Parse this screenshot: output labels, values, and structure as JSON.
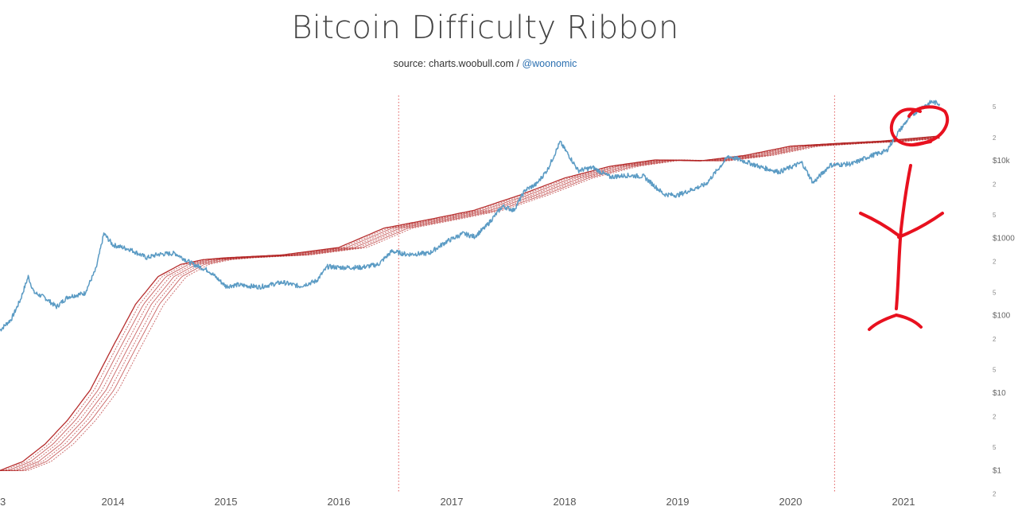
{
  "chart_data": {
    "type": "line",
    "title": "Bitcoin Difficulty Ribbon",
    "source_text": "source: charts.woobull.com / ",
    "source_handle": "@woonomic",
    "x_tick_labels": [
      {
        "year": 2013,
        "label": "3"
      },
      {
        "year": 2014,
        "label": "2014"
      },
      {
        "year": 2015,
        "label": "2015"
      },
      {
        "year": 2016,
        "label": "2016"
      },
      {
        "year": 2017,
        "label": "2017"
      },
      {
        "year": 2018,
        "label": "2018"
      },
      {
        "year": 2019,
        "label": "2019"
      },
      {
        "year": 2020,
        "label": "2020"
      },
      {
        "year": 2021,
        "label": "2021"
      }
    ],
    "y_scale": "log",
    "ylim": [
      0.45,
      70000
    ],
    "y_major_ticks": [
      {
        "value": 1,
        "label": "$1"
      },
      {
        "value": 10,
        "label": "$10"
      },
      {
        "value": 100,
        "label": "$100"
      },
      {
        "value": 1000,
        "label": "$1000"
      },
      {
        "value": 10000,
        "label": "$10k"
      }
    ],
    "y_minor_ticks": [
      {
        "value": 0.5,
        "label": "2"
      },
      {
        "value": 2,
        "label": "5"
      },
      {
        "value": 5,
        "label": "2"
      },
      {
        "value": 20,
        "label": "5"
      },
      {
        "value": 50,
        "label": "2"
      },
      {
        "value": 200,
        "label": "5"
      },
      {
        "value": 500,
        "label": "2"
      },
      {
        "value": 2000,
        "label": "5"
      },
      {
        "value": 5000,
        "label": "2"
      },
      {
        "value": 20000,
        "label": "2"
      },
      {
        "value": 50000,
        "label": "5"
      }
    ],
    "halving_lines": [
      2016.53,
      2020.39
    ],
    "series": [
      {
        "name": "Bitcoin price",
        "color": "#5b9bc4",
        "points": [
          [
            2013.0,
            65
          ],
          [
            2013.1,
            90
          ],
          [
            2013.18,
            160
          ],
          [
            2013.25,
            320
          ],
          [
            2013.3,
            200
          ],
          [
            2013.4,
            170
          ],
          [
            2013.5,
            130
          ],
          [
            2013.6,
            175
          ],
          [
            2013.75,
            195
          ],
          [
            2013.85,
            400
          ],
          [
            2013.92,
            1150
          ],
          [
            2014.0,
            820
          ],
          [
            2014.15,
            720
          ],
          [
            2014.3,
            560
          ],
          [
            2014.4,
            620
          ],
          [
            2014.55,
            640
          ],
          [
            2014.7,
            470
          ],
          [
            2014.85,
            380
          ],
          [
            2015.0,
            240
          ],
          [
            2015.1,
            250
          ],
          [
            2015.3,
            235
          ],
          [
            2015.5,
            270
          ],
          [
            2015.65,
            240
          ],
          [
            2015.8,
            280
          ],
          [
            2015.9,
            430
          ],
          [
            2016.0,
            420
          ],
          [
            2016.2,
            420
          ],
          [
            2016.35,
            460
          ],
          [
            2016.47,
            680
          ],
          [
            2016.6,
            620
          ],
          [
            2016.8,
            640
          ],
          [
            2016.95,
            900
          ],
          [
            2017.1,
            1150
          ],
          [
            2017.2,
            1050
          ],
          [
            2017.3,
            1400
          ],
          [
            2017.45,
            2600
          ],
          [
            2017.55,
            2300
          ],
          [
            2017.65,
            4200
          ],
          [
            2017.75,
            5000
          ],
          [
            2017.85,
            7800
          ],
          [
            2017.96,
            17500
          ],
          [
            2018.05,
            11000
          ],
          [
            2018.12,
            7500
          ],
          [
            2018.25,
            8200
          ],
          [
            2018.4,
            6200
          ],
          [
            2018.55,
            6500
          ],
          [
            2018.7,
            6300
          ],
          [
            2018.88,
            3700
          ],
          [
            2019.0,
            3600
          ],
          [
            2019.25,
            5000
          ],
          [
            2019.45,
            11500
          ],
          [
            2019.6,
            9800
          ],
          [
            2019.75,
            8200
          ],
          [
            2019.9,
            7200
          ],
          [
            2020.1,
            9500
          ],
          [
            2020.2,
            5200
          ],
          [
            2020.35,
            8800
          ],
          [
            2020.55,
            9200
          ],
          [
            2020.7,
            11500
          ],
          [
            2020.85,
            13500
          ],
          [
            2020.95,
            23000
          ],
          [
            2021.05,
            36000
          ],
          [
            2021.15,
            48000
          ],
          [
            2021.25,
            58000
          ],
          [
            2021.32,
            55000
          ]
        ]
      },
      {
        "name": "Difficulty ribbon",
        "color": "#b22222",
        "points": [
          [
            2013.0,
            1.0
          ],
          [
            2013.2,
            1.3
          ],
          [
            2013.4,
            2.2
          ],
          [
            2013.6,
            4.5
          ],
          [
            2013.8,
            11
          ],
          [
            2014.0,
            40
          ],
          [
            2014.2,
            140
          ],
          [
            2014.4,
            320
          ],
          [
            2014.6,
            460
          ],
          [
            2014.8,
            530
          ],
          [
            2015.0,
            560
          ],
          [
            2015.5,
            610
          ],
          [
            2016.0,
            760
          ],
          [
            2016.4,
            1350
          ],
          [
            2016.8,
            1750
          ],
          [
            2017.2,
            2300
          ],
          [
            2017.6,
            3600
          ],
          [
            2018.0,
            6000
          ],
          [
            2018.4,
            8500
          ],
          [
            2018.8,
            10300
          ],
          [
            2019.2,
            10000
          ],
          [
            2019.6,
            11800
          ],
          [
            2020.0,
            15500
          ],
          [
            2020.4,
            16800
          ],
          [
            2020.8,
            18000
          ],
          [
            2021.32,
            21000
          ]
        ]
      }
    ]
  },
  "annotation": {
    "color": "#e8111f"
  }
}
